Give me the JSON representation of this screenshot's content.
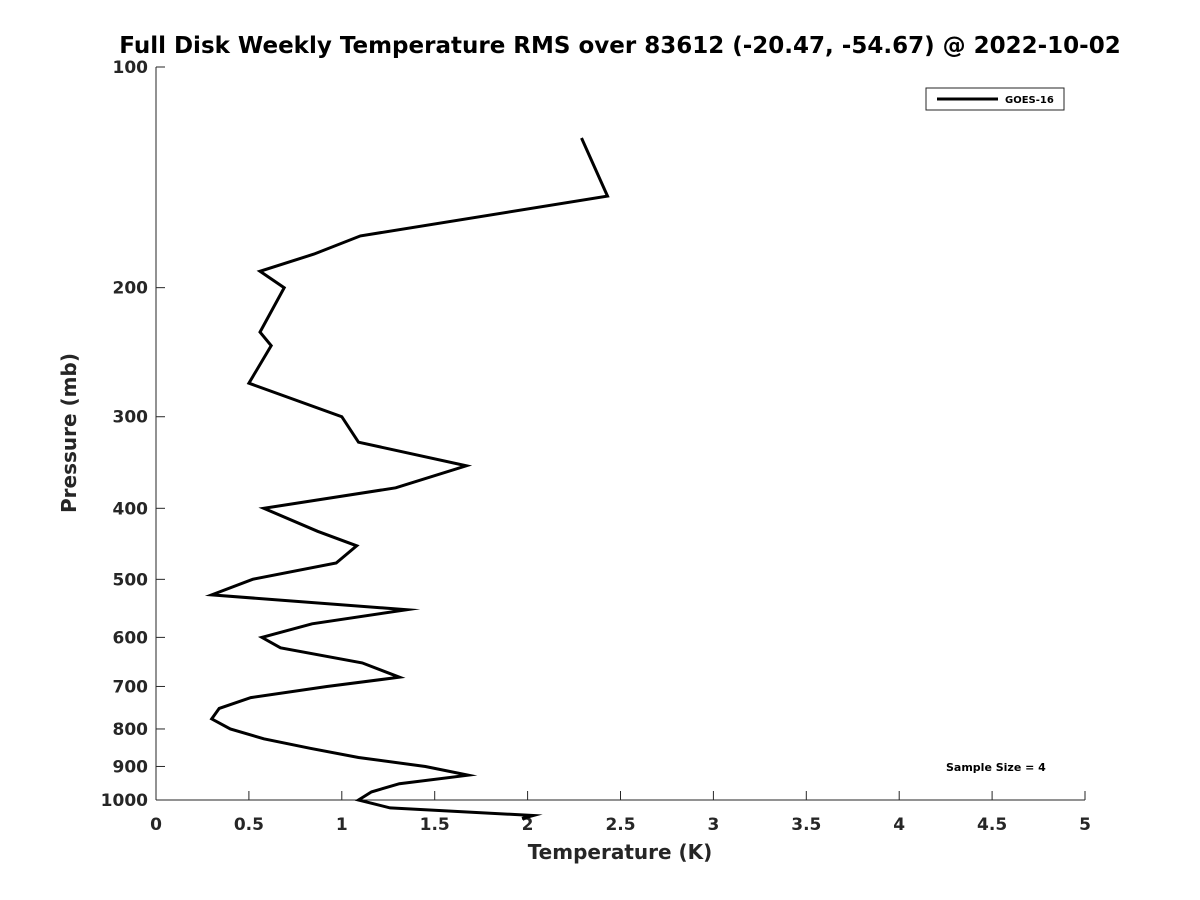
{
  "chart_data": {
    "type": "line",
    "title": "Full Disk Weekly Temperature RMS over 83612 (-20.47, -54.67) @ 2022-10-02",
    "xlabel": "Temperature (K)",
    "ylabel": "Pressure (mb)",
    "xlim": [
      0,
      5
    ],
    "ylim": [
      100,
      1000
    ],
    "y_scale": "log",
    "y_reversed": true,
    "grid": false,
    "legend_position": "top-right",
    "x_ticks": [
      0,
      0.5,
      1,
      1.5,
      2,
      2.5,
      3,
      3.5,
      4,
      4.5,
      5
    ],
    "x_tick_labels": [
      "0",
      "0.5",
      "1",
      "1.5",
      "2",
      "2.5",
      "3",
      "3.5",
      "4",
      "4.5",
      "5"
    ],
    "y_ticks": [
      100,
      200,
      300,
      400,
      500,
      600,
      700,
      800,
      900,
      1000
    ],
    "y_tick_labels": [
      "100",
      "200",
      "300",
      "400",
      "500",
      "600",
      "700",
      "800",
      "900",
      "1000"
    ],
    "series": [
      {
        "name": "GOES-16",
        "color": "#000000",
        "x": [
          2.29,
          2.43,
          1.1,
          0.85,
          0.56,
          0.69,
          0.56,
          0.62,
          0.5,
          1.0,
          1.09,
          1.67,
          1.29,
          0.58,
          0.87,
          1.08,
          0.97,
          0.52,
          0.3,
          1.35,
          0.84,
          0.57,
          0.67,
          1.11,
          1.31,
          0.92,
          0.51,
          0.34,
          0.3,
          0.4,
          0.58,
          0.83,
          1.09,
          1.45,
          1.68,
          1.31,
          1.16,
          1.09,
          1.26,
          2.03,
          1.97
        ],
        "y": [
          125,
          150,
          170,
          180,
          190,
          200,
          230,
          240,
          270,
          300,
          325,
          350,
          375,
          400,
          430,
          450,
          475,
          500,
          525,
          550,
          575,
          600,
          620,
          650,
          680,
          700,
          725,
          750,
          775,
          800,
          825,
          850,
          875,
          900,
          925,
          950,
          975,
          1000,
          1025,
          1050,
          1060
        ]
      }
    ],
    "annotations": [
      "Sample Size = 4"
    ]
  }
}
